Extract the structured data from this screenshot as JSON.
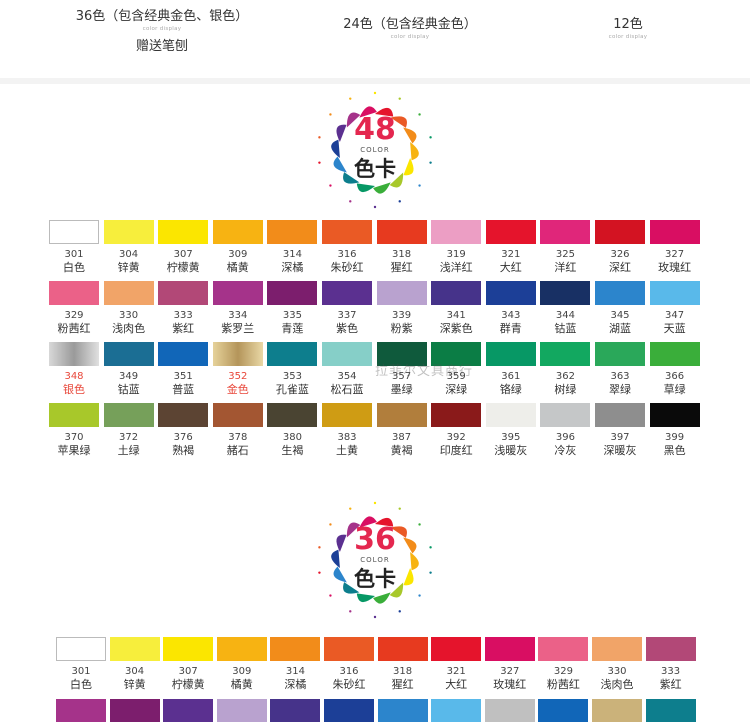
{
  "options": [
    {
      "title": "36色（包含经典金色、银色）",
      "sub": "color display",
      "extra": "赠送笔刨"
    },
    {
      "title": "24色（包含经典金色）",
      "sub": "color display",
      "extra": ""
    },
    {
      "title": "12色",
      "sub": "color display",
      "extra": ""
    }
  ],
  "badge48": {
    "number": "48",
    "color_word": "COLOR",
    "card": "色卡"
  },
  "badge36": {
    "number": "36",
    "color_word": "COLOR",
    "card": "色卡"
  },
  "watermark": "拉菲尔文具商行",
  "chart48": [
    {
      "code": "301",
      "name": "白色",
      "hex": "#ffffff"
    },
    {
      "code": "304",
      "name": "锌黄",
      "hex": "#f7ee3c"
    },
    {
      "code": "307",
      "name": "柠檬黄",
      "hex": "#fbe600"
    },
    {
      "code": "309",
      "name": "橘黄",
      "hex": "#f7b312"
    },
    {
      "code": "314",
      "name": "深橘",
      "hex": "#f28c1a"
    },
    {
      "code": "316",
      "name": "朱砂红",
      "hex": "#ea5a25"
    },
    {
      "code": "318",
      "name": "猩红",
      "hex": "#e73a1f"
    },
    {
      "code": "319",
      "name": "浅洋红",
      "hex": "#ec9ec4"
    },
    {
      "code": "321",
      "name": "大红",
      "hex": "#e5142c"
    },
    {
      "code": "325",
      "name": "洋红",
      "hex": "#e0267a"
    },
    {
      "code": "326",
      "name": "深红",
      "hex": "#d31322"
    },
    {
      "code": "327",
      "name": "玫瑰红",
      "hex": "#d90e62"
    },
    {
      "code": "329",
      "name": "粉茜红",
      "hex": "#eb6188"
    },
    {
      "code": "330",
      "name": "浅肉色",
      "hex": "#f1a468"
    },
    {
      "code": "333",
      "name": "紫红",
      "hex": "#b24877"
    },
    {
      "code": "334",
      "name": "紫罗兰",
      "hex": "#a5338a"
    },
    {
      "code": "335",
      "name": "青莲",
      "hex": "#7c1e6d"
    },
    {
      "code": "337",
      "name": "紫色",
      "hex": "#5b3090"
    },
    {
      "code": "339",
      "name": "粉紫",
      "hex": "#b9a2cf"
    },
    {
      "code": "341",
      "name": "深紫色",
      "hex": "#46338a"
    },
    {
      "code": "343",
      "name": "群青",
      "hex": "#1c3f97"
    },
    {
      "code": "344",
      "name": "钴蓝",
      "hex": "#183064"
    },
    {
      "code": "345",
      "name": "湖蓝",
      "hex": "#2c85cc"
    },
    {
      "code": "347",
      "name": "天蓝",
      "hex": "#59b9ea"
    },
    {
      "code": "348",
      "name": "银色",
      "hex": "#c0c0c0",
      "red": true
    },
    {
      "code": "349",
      "name": "钴蓝",
      "hex": "#1b6e94"
    },
    {
      "code": "351",
      "name": "普蓝",
      "hex": "#1166b8"
    },
    {
      "code": "352",
      "name": "金色",
      "hex": "#cbb27a",
      "red": true
    },
    {
      "code": "353",
      "name": "孔雀蓝",
      "hex": "#0d7e8d"
    },
    {
      "code": "354",
      "name": "松石蓝",
      "hex": "#86cfc8"
    },
    {
      "code": "357",
      "name": "墨绿",
      "hex": "#0f5a3c"
    },
    {
      "code": "359",
      "name": "深绿",
      "hex": "#0b7d45"
    },
    {
      "code": "361",
      "name": "铬绿",
      "hex": "#079865"
    },
    {
      "code": "362",
      "name": "树绿",
      "hex": "#12a860"
    },
    {
      "code": "363",
      "name": "翠绿",
      "hex": "#2aa85a"
    },
    {
      "code": "366",
      "name": "草绿",
      "hex": "#3aae3a"
    },
    {
      "code": "370",
      "name": "苹果绿",
      "hex": "#a8c82a"
    },
    {
      "code": "372",
      "name": "土绿",
      "hex": "#76a05a"
    },
    {
      "code": "376",
      "name": "熟褐",
      "hex": "#5c4433"
    },
    {
      "code": "378",
      "name": "赭石",
      "hex": "#a35632"
    },
    {
      "code": "380",
      "name": "生褐",
      "hex": "#4a4432"
    },
    {
      "code": "383",
      "name": "土黄",
      "hex": "#cf9c14"
    },
    {
      "code": "387",
      "name": "黄褐",
      "hex": "#b17e3c"
    },
    {
      "code": "392",
      "name": "印度红",
      "hex": "#8a1a1a"
    },
    {
      "code": "395",
      "name": "浅暖灰",
      "hex": "#eeeeea"
    },
    {
      "code": "396",
      "name": "冷灰",
      "hex": "#c5c7c8"
    },
    {
      "code": "397",
      "name": "深暖灰",
      "hex": "#8e8e8e"
    },
    {
      "code": "399",
      "name": "黑色",
      "hex": "#0a0a0a"
    }
  ],
  "chart36": [
    {
      "code": "301",
      "name": "白色",
      "hex": "#ffffff"
    },
    {
      "code": "304",
      "name": "锌黄",
      "hex": "#f7ee3c"
    },
    {
      "code": "307",
      "name": "柠檬黄",
      "hex": "#fbe600"
    },
    {
      "code": "309",
      "name": "橘黄",
      "hex": "#f7b312"
    },
    {
      "code": "314",
      "name": "深橘",
      "hex": "#f28c1a"
    },
    {
      "code": "316",
      "name": "朱砂红",
      "hex": "#ea5a25"
    },
    {
      "code": "318",
      "name": "猩红",
      "hex": "#e73a1f"
    },
    {
      "code": "321",
      "name": "大红",
      "hex": "#e5142c"
    },
    {
      "code": "327",
      "name": "玫瑰红",
      "hex": "#d90e62"
    },
    {
      "code": "329",
      "name": "粉茜红",
      "hex": "#eb6188"
    },
    {
      "code": "330",
      "name": "浅肉色",
      "hex": "#f1a468"
    },
    {
      "code": "333",
      "name": "紫红",
      "hex": "#b24877"
    }
  ],
  "chart36_row2_colors": [
    "#a5338a",
    "#7c1e6d",
    "#5b3090",
    "#b9a2cf",
    "#46338a",
    "#1c3f97",
    "#2c85cc",
    "#59b9ea",
    "#c0c0c0",
    "#1166b8",
    "#cbb27a",
    "#0d7e8d"
  ]
}
